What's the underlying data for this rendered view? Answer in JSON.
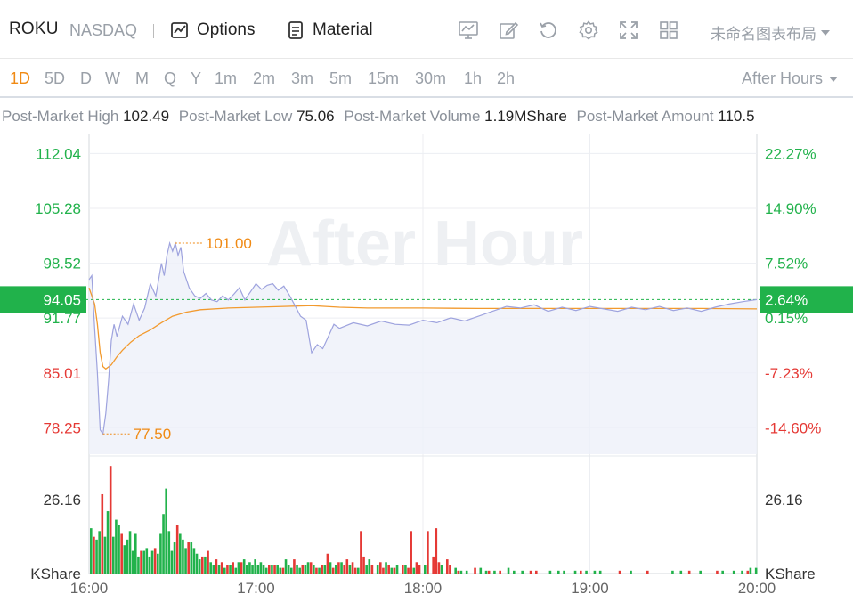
{
  "header": {
    "symbol": "ROKU",
    "exchange": "NASDAQ",
    "options_label": "Options",
    "material_label": "Material",
    "layout_name": "未命名图表布局"
  },
  "icons": [
    "chart-settings-icon",
    "draw-icon",
    "reset-icon",
    "gear-icon",
    "fullscreen-icon",
    "layout-grid-icon"
  ],
  "timeframes": {
    "items": [
      "1D",
      "5D",
      "D",
      "W",
      "M",
      "Q",
      "Y",
      "1m",
      "2m",
      "3m",
      "5m",
      "15m",
      "30m",
      "1h",
      "2h"
    ],
    "active": "1D",
    "session": "After Hours"
  },
  "stats": {
    "high_label": "Post-Market High",
    "high_value": "102.49",
    "low_label": "Post-Market Low",
    "low_value": "75.06",
    "volume_label": "Post-Market Volume",
    "volume_value": "1.19MShare",
    "amount_label": "Post-Market Amount",
    "amount_value": "110.5"
  },
  "chart_data": {
    "type": "line",
    "watermark": "After Hour",
    "x_ticks": [
      "16:00",
      "17:00",
      "18:00",
      "19:00",
      "20:00"
    ],
    "x_range_minutes": [
      0,
      240
    ],
    "y_left_ticks": [
      "112.04",
      "105.28",
      "98.52",
      "91.77",
      "85.01",
      "78.25"
    ],
    "y_right_ticks": [
      "22.27%",
      "14.90%",
      "7.52%",
      "0.15%",
      "-7.23%",
      "-14.60%"
    ],
    "y_range": [
      75.0,
      114.5
    ],
    "prev_close": 91.64,
    "current_price": "94.05",
    "current_pct": "2.64%",
    "high_marker": {
      "label": "101.00",
      "time": 31,
      "value": 101.0
    },
    "low_marker": {
      "label": "77.50",
      "time": 5,
      "value": 77.5
    },
    "colors": {
      "up": "#21b24b",
      "down": "#e53935",
      "price_line": "#9ea3de",
      "avg_line": "#f29a2e",
      "accent": "#f08a14",
      "current_tag": "#21b24b"
    },
    "price_series": {
      "name": "",
      "x": [
        0,
        1,
        2,
        3,
        4,
        5,
        6,
        7,
        8,
        9,
        10,
        12,
        14,
        16,
        18,
        20,
        22,
        24,
        26,
        27,
        28,
        29,
        30,
        31,
        32,
        33,
        34,
        36,
        38,
        40,
        42,
        44,
        46,
        48,
        50,
        52,
        54,
        56,
        58,
        60,
        62,
        64,
        66,
        68,
        70,
        72,
        74,
        76,
        78,
        80,
        82,
        84,
        86,
        88,
        90,
        95,
        100,
        105,
        110,
        115,
        120,
        125,
        130,
        135,
        140,
        145,
        150,
        155,
        160,
        165,
        170,
        175,
        180,
        185,
        190,
        195,
        200,
        205,
        210,
        215,
        220,
        225,
        230,
        235,
        240
      ],
      "y": [
        96.5,
        97.0,
        90.5,
        85.0,
        78.0,
        77.5,
        80.0,
        84.0,
        89.0,
        91.0,
        89.5,
        92.0,
        91.0,
        93.5,
        91.5,
        93.0,
        96.0,
        94.5,
        98.5,
        97.0,
        99.5,
        101.0,
        100.0,
        101.0,
        99.5,
        100.5,
        97.5,
        95.5,
        94.5,
        94.2,
        94.8,
        94.0,
        93.8,
        94.5,
        94.0,
        94.7,
        95.5,
        94.0,
        95.0,
        96.0,
        95.3,
        95.8,
        96.0,
        95.2,
        95.7,
        94.6,
        93.3,
        92.0,
        91.5,
        87.5,
        88.5,
        88.0,
        89.5,
        91.0,
        90.5,
        91.2,
        90.8,
        91.4,
        91.0,
        90.9,
        91.5,
        91.2,
        91.8,
        91.4,
        92.0,
        92.6,
        93.2,
        93.0,
        93.4,
        92.6,
        93.1,
        92.7,
        93.2,
        92.9,
        92.6,
        93.1,
        92.8,
        93.2,
        92.7,
        93.0,
        92.6,
        93.1,
        93.5,
        93.8,
        94.05
      ]
    },
    "avg_series": {
      "name": "",
      "x": [
        0,
        2,
        3,
        4,
        5,
        6,
        8,
        10,
        12,
        15,
        18,
        22,
        26,
        30,
        35,
        40,
        50,
        60,
        70,
        80,
        85,
        90,
        100,
        120,
        140,
        160,
        180,
        200,
        220,
        240
      ],
      "y": [
        95.5,
        93.5,
        91.0,
        87.5,
        85.8,
        85.5,
        86.0,
        87.0,
        87.8,
        88.8,
        89.6,
        90.3,
        91.2,
        92.0,
        92.5,
        92.8,
        93.0,
        93.1,
        93.2,
        93.3,
        93.2,
        93.1,
        93.0,
        93.0,
        92.95,
        92.95,
        92.95,
        92.95,
        92.95,
        92.9
      ]
    },
    "volume": {
      "y_tick": "26.16",
      "unit": "KShare",
      "max": 39.0,
      "bars_up": [
        [
          0,
          16
        ],
        [
          2,
          12
        ],
        [
          3,
          15
        ],
        [
          5,
          13
        ],
        [
          6,
          22
        ],
        [
          8,
          13
        ],
        [
          9,
          19
        ],
        [
          10,
          17
        ],
        [
          12,
          10
        ],
        [
          13,
          12
        ],
        [
          14,
          15
        ],
        [
          15,
          8
        ],
        [
          16,
          14
        ],
        [
          17,
          6
        ],
        [
          19,
          8
        ],
        [
          20,
          9
        ],
        [
          21,
          6
        ],
        [
          22,
          8
        ],
        [
          24,
          7
        ],
        [
          25,
          14
        ],
        [
          26,
          21
        ],
        [
          27,
          30
        ],
        [
          28,
          15
        ],
        [
          29,
          8
        ],
        [
          30,
          11
        ],
        [
          32,
          14
        ],
        [
          33,
          12
        ],
        [
          34,
          9
        ],
        [
          36,
          11
        ],
        [
          37,
          9
        ],
        [
          38,
          7
        ],
        [
          39,
          5
        ],
        [
          41,
          6
        ],
        [
          43,
          4
        ],
        [
          44,
          3
        ],
        [
          46,
          3
        ],
        [
          48,
          2
        ],
        [
          50,
          3
        ],
        [
          52,
          2
        ],
        [
          53,
          4
        ],
        [
          55,
          5
        ],
        [
          56,
          3
        ],
        [
          57,
          4
        ],
        [
          58,
          3
        ],
        [
          59,
          5
        ],
        [
          60,
          3
        ],
        [
          61,
          4
        ],
        [
          62,
          3
        ],
        [
          63,
          2
        ],
        [
          65,
          3
        ],
        [
          67,
          3
        ],
        [
          68,
          2
        ],
        [
          70,
          5
        ],
        [
          71,
          3
        ],
        [
          72,
          2
        ],
        [
          74,
          3
        ],
        [
          75,
          2
        ],
        [
          77,
          3
        ],
        [
          78,
          4
        ],
        [
          80,
          3
        ],
        [
          82,
          2
        ],
        [
          84,
          3
        ],
        [
          86,
          4
        ],
        [
          88,
          3
        ],
        [
          90,
          4
        ],
        [
          93,
          3
        ],
        [
          96,
          2
        ],
        [
          99,
          3
        ],
        [
          100,
          5
        ],
        [
          103,
          3
        ],
        [
          106,
          4
        ],
        [
          108,
          2
        ],
        [
          110,
          3
        ],
        [
          113,
          3
        ],
        [
          116,
          2
        ],
        [
          120,
          3
        ],
        [
          126,
          3
        ],
        [
          131,
          2
        ],
        [
          133,
          1
        ],
        [
          135,
          1
        ],
        [
          140,
          2
        ],
        [
          142,
          1
        ],
        [
          145,
          1
        ],
        [
          150,
          2
        ],
        [
          152,
          1
        ],
        [
          155,
          1
        ],
        [
          165,
          1
        ],
        [
          168,
          1
        ],
        [
          170,
          1
        ],
        [
          174,
          1
        ],
        [
          178,
          1
        ],
        [
          181,
          1
        ],
        [
          183,
          1
        ],
        [
          194,
          1
        ],
        [
          209,
          1
        ],
        [
          212,
          1
        ],
        [
          219,
          1
        ],
        [
          227,
          1
        ],
        [
          231,
          1
        ],
        [
          234,
          1
        ],
        [
          237,
          2
        ],
        [
          239,
          2
        ]
      ],
      "bars_down": [
        [
          1,
          13
        ],
        [
          4,
          28
        ],
        [
          7,
          38
        ],
        [
          11,
          14
        ],
        [
          18,
          8
        ],
        [
          23,
          9
        ],
        [
          31,
          17
        ],
        [
          35,
          11
        ],
        [
          40,
          6
        ],
        [
          42,
          8
        ],
        [
          45,
          5
        ],
        [
          47,
          4
        ],
        [
          49,
          3
        ],
        [
          51,
          4
        ],
        [
          54,
          4
        ],
        [
          64,
          3
        ],
        [
          66,
          3
        ],
        [
          69,
          2
        ],
        [
          73,
          5
        ],
        [
          76,
          3
        ],
        [
          79,
          4
        ],
        [
          81,
          2
        ],
        [
          83,
          3
        ],
        [
          85,
          7
        ],
        [
          87,
          2
        ],
        [
          89,
          4
        ],
        [
          91,
          3
        ],
        [
          92,
          5
        ],
        [
          94,
          4
        ],
        [
          95,
          2
        ],
        [
          97,
          15
        ],
        [
          98,
          6
        ],
        [
          101,
          3
        ],
        [
          104,
          4
        ],
        [
          105,
          2
        ],
        [
          107,
          3
        ],
        [
          109,
          2
        ],
        [
          112,
          3
        ],
        [
          114,
          2
        ],
        [
          115,
          15
        ],
        [
          117,
          4
        ],
        [
          118,
          3
        ],
        [
          121,
          15
        ],
        [
          123,
          6
        ],
        [
          124,
          16
        ],
        [
          125,
          4
        ],
        [
          128,
          5
        ],
        [
          129,
          3
        ],
        [
          132,
          1
        ],
        [
          138,
          2
        ],
        [
          143,
          1
        ],
        [
          147,
          1
        ],
        [
          158,
          1
        ],
        [
          160,
          1
        ],
        [
          176,
          1
        ],
        [
          190,
          1
        ],
        [
          200,
          1
        ],
        [
          215,
          1
        ],
        [
          225,
          1
        ],
        [
          236,
          1
        ]
      ]
    }
  }
}
